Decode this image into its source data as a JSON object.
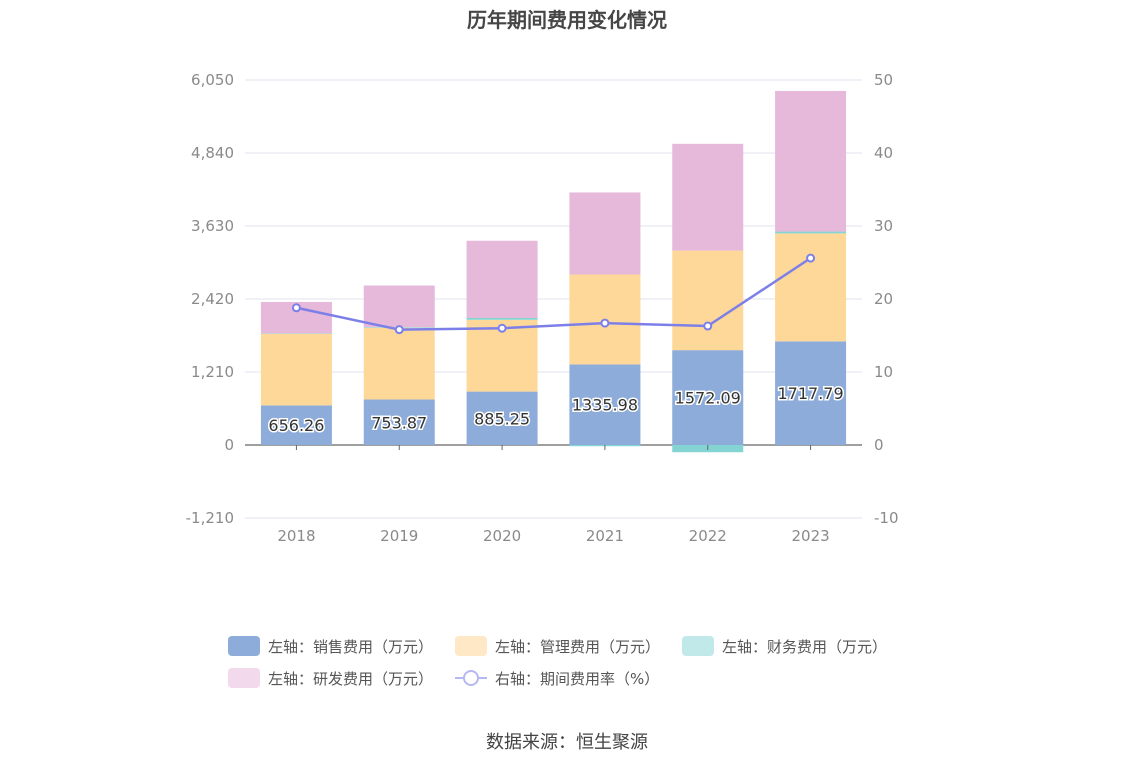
{
  "chart_data": {
    "type": "bar",
    "title": "历年期间费用变化情况",
    "categories": [
      "2018",
      "2019",
      "2020",
      "2021",
      "2022",
      "2023"
    ],
    "series": [
      {
        "name": "左轴：销售费用（万元）",
        "axis": "left",
        "stack": "total",
        "color": "#8eacd9",
        "values": [
          656.26,
          753.87,
          885.25,
          1335.98,
          1572.09,
          1717.79
        ]
      },
      {
        "name": "左轴：管理费用（万元）",
        "axis": "left",
        "stack": "total",
        "color": "#fed898",
        "values": [
          1190,
          1190,
          1190,
          1490,
          1650,
          1790
        ]
      },
      {
        "name": "左轴：财务费用（万元）",
        "axis": "left",
        "stack": "total",
        "color": "#84d4d4",
        "values": [
          5,
          10,
          30,
          -20,
          -120,
          30
        ]
      },
      {
        "name": "左轴：研发费用（万元）",
        "axis": "left",
        "stack": "total",
        "color": "#e6b8da",
        "values": [
          520,
          690,
          1280,
          1360,
          1770,
          2330
        ]
      },
      {
        "name": "右轴：期间费用率（%）",
        "axis": "right",
        "type": "line",
        "color": "#7d7fe8",
        "values": [
          18.8,
          15.8,
          16.0,
          16.7,
          16.3,
          25.6
        ]
      }
    ],
    "left_axis": {
      "ticks": [
        "6,050",
        "4,840",
        "3,630",
        "2,420",
        "1,210",
        "0",
        "-1,210"
      ],
      "ylim": [
        -1210,
        6050
      ]
    },
    "right_axis": {
      "ticks": [
        "50",
        "40",
        "30",
        "20",
        "10",
        "0",
        "-10"
      ],
      "ylim": [
        -10,
        50
      ]
    },
    "data_labels": [
      "656.26",
      "753.87",
      "885.25",
      "1335.98",
      "1572.09",
      "1717.79"
    ],
    "grid": true,
    "legend_position": "bottom"
  },
  "legend": {
    "row1": [
      "左轴：销售费用（万元）",
      "左轴：管理费用（万元）",
      "左轴：财务费用（万元）"
    ],
    "row2": [
      "左轴：研发费用（万元）",
      "右轴：期间费用率（%）"
    ]
  },
  "source": "数据来源：恒生聚源"
}
